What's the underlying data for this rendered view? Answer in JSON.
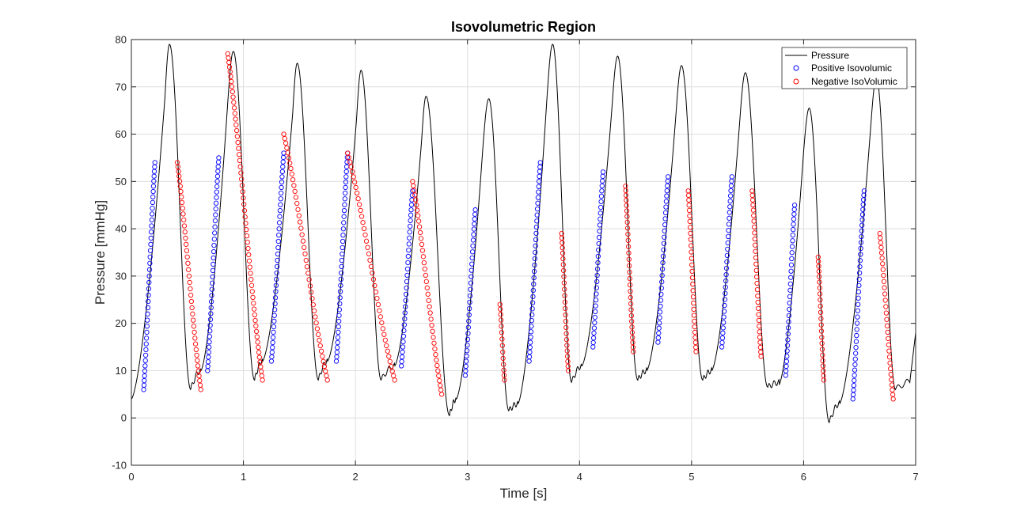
{
  "chart_data": {
    "type": "line",
    "title": "Isovolumetric Region",
    "xlabel": "Time [s]",
    "ylabel": "Pressure [mmHg]",
    "xlim": [
      0,
      7
    ],
    "ylim": [
      -10,
      80
    ],
    "x_ticks": [
      "0",
      "1",
      "2",
      "3",
      "4",
      "5",
      "6",
      "7"
    ],
    "y_ticks": [
      "-10",
      "0",
      "10",
      "20",
      "30",
      "40",
      "50",
      "60",
      "70",
      "80"
    ],
    "grid": true,
    "legend_position": "top-right",
    "colors": {
      "pressure": "#000000",
      "positive": "#0000ff",
      "negative": "#ff0000",
      "grid": "#dedede"
    },
    "beats": [
      {
        "start": 0.0,
        "base": 4,
        "rise_end": 0.3,
        "peak_t": 0.34,
        "peak": 79,
        "min_t": 0.53,
        "min": 6,
        "plateau": 10,
        "pos": [
          0.11,
          0.21,
          6,
          54
        ],
        "neg": [
          0.41,
          0.62,
          54,
          6
        ]
      },
      {
        "start": 0.62,
        "base": 10,
        "rise_end": 0.86,
        "peak_t": 0.91,
        "peak": 77.5,
        "min_t": 1.1,
        "min": 8,
        "plateau": 12,
        "pos": [
          0.68,
          0.78,
          10,
          55
        ],
        "neg": [
          0.86,
          1.17,
          77,
          8
        ]
      },
      {
        "start": 1.17,
        "base": 12,
        "rise_end": 1.44,
        "peak_t": 1.48,
        "peak": 75,
        "min_t": 1.67,
        "min": 8,
        "plateau": 12,
        "pos": [
          1.25,
          1.36,
          12,
          56
        ],
        "neg": [
          1.36,
          1.75,
          60,
          8
        ]
      },
      {
        "start": 1.75,
        "base": 12,
        "rise_end": 2.01,
        "peak_t": 2.05,
        "peak": 73.5,
        "min_t": 2.23,
        "min": 8,
        "plateau": 11,
        "pos": [
          1.83,
          1.93,
          12,
          56
        ],
        "neg": [
          1.93,
          2.35,
          56,
          8
        ]
      },
      {
        "start": 2.35,
        "base": 11,
        "rise_end": 2.59,
        "peak_t": 2.63,
        "peak": 68,
        "min_t": 2.84,
        "min": 0.5,
        "plateau": 4,
        "pos": [
          2.41,
          2.51,
          11,
          48
        ],
        "neg": [
          2.51,
          2.77,
          50,
          5
        ]
      },
      {
        "start": 2.9,
        "base": 4,
        "rise_end": 3.14,
        "peak_t": 3.19,
        "peak": 67.5,
        "min_t": 3.37,
        "min": 1.5,
        "plateau": 3,
        "pos": [
          2.98,
          3.07,
          9,
          44
        ],
        "neg": [
          3.29,
          3.33,
          24,
          8
        ]
      },
      {
        "start": 3.45,
        "base": 3,
        "rise_end": 3.71,
        "peak_t": 3.76,
        "peak": 79,
        "min_t": 3.93,
        "min": 7.5,
        "plateau": 11,
        "pos": [
          3.55,
          3.65,
          12,
          54
        ],
        "neg": [
          3.84,
          3.9,
          39,
          10
        ]
      },
      {
        "start": 4.02,
        "base": 11,
        "rise_end": 4.29,
        "peak_t": 4.34,
        "peak": 76.5,
        "min_t": 4.52,
        "min": 8,
        "plateau": 10,
        "pos": [
          4.12,
          4.21,
          15,
          52
        ],
        "neg": [
          4.41,
          4.48,
          49,
          14
        ]
      },
      {
        "start": 4.6,
        "base": 10,
        "rise_end": 4.86,
        "peak_t": 4.91,
        "peak": 74.5,
        "min_t": 5.1,
        "min": 8,
        "plateau": 10,
        "pos": [
          4.7,
          4.79,
          16,
          51
        ],
        "neg": [
          4.97,
          5.04,
          48,
          14
        ]
      },
      {
        "start": 5.18,
        "base": 10,
        "rise_end": 5.43,
        "peak_t": 5.48,
        "peak": 73,
        "min_t": 5.68,
        "min": 6.5,
        "plateau": 7.5,
        "pos": [
          5.27,
          5.36,
          15,
          51
        ],
        "neg": [
          5.54,
          5.62,
          48,
          13
        ]
      },
      {
        "start": 5.78,
        "base": 7,
        "rise_end": 6.0,
        "peak_t": 6.05,
        "peak": 65.5,
        "min_t": 6.23,
        "min": -1,
        "plateau": 3,
        "pos": [
          5.84,
          5.92,
          9,
          45
        ],
        "neg": [
          6.13,
          6.18,
          34,
          8
        ]
      },
      {
        "start": 6.32,
        "base": 3,
        "rise_end": 6.6,
        "peak_t": 6.65,
        "peak": 72,
        "min_t": 6.82,
        "min": 6,
        "plateau": 8,
        "pos": [
          6.44,
          6.54,
          4,
          48
        ],
        "neg": [
          6.68,
          6.8,
          39,
          4
        ]
      }
    ],
    "series": [
      {
        "name": "Pressure",
        "style": "line",
        "color": "#000000"
      },
      {
        "name": "Positive Isovolumic",
        "style": "circle",
        "color": "#0000ff"
      },
      {
        "name": "Negative IsoVolumic",
        "style": "circle",
        "color": "#ff0000"
      }
    ]
  }
}
